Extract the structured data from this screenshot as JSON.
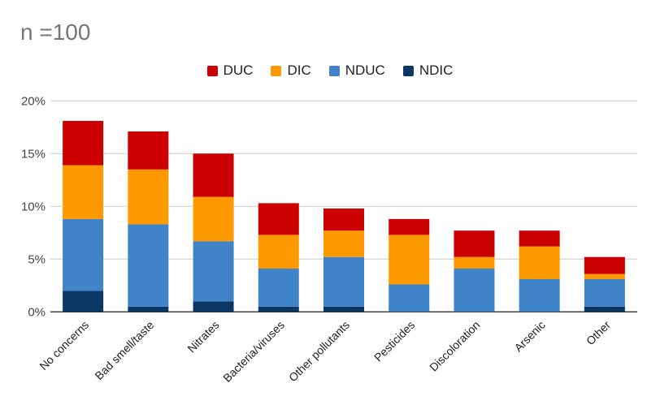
{
  "title": "n =100",
  "chart_data": {
    "type": "bar",
    "stacked": true,
    "categories": [
      "No concerns",
      "Bad smell/taste",
      "Nitrates",
      "Bacteria/viruses",
      "Other pollutants",
      "Pesticides",
      "Discoloration",
      "Arsenic",
      "Other"
    ],
    "series": [
      {
        "name": "NDIC",
        "color": "#0a3764",
        "values": [
          2.0,
          0.5,
          1.0,
          0.5,
          0.5,
          0,
          0,
          0,
          0.5
        ]
      },
      {
        "name": "NDUC",
        "color": "#3f84c8",
        "values": [
          6.8,
          7.8,
          5.7,
          3.6,
          4.7,
          2.6,
          4.1,
          3.1,
          2.6
        ]
      },
      {
        "name": "DIC",
        "color": "#ff9900",
        "values": [
          5.1,
          5.2,
          4.2,
          3.2,
          2.5,
          4.7,
          1.1,
          3.1,
          0.5
        ]
      },
      {
        "name": "DUC",
        "color": "#cc0000",
        "values": [
          4.2,
          3.6,
          4.1,
          3.0,
          2.1,
          1.5,
          2.5,
          1.5,
          1.6
        ]
      }
    ],
    "legend_order": [
      "DUC",
      "DIC",
      "NDUC",
      "NDIC"
    ],
    "legend_position": "top",
    "ylim": [
      0,
      20
    ],
    "yticks": [
      "0%",
      "5%",
      "10%",
      "15%",
      "20%"
    ],
    "ytick_values": [
      0,
      5,
      10,
      15,
      20
    ],
    "grid": true
  }
}
